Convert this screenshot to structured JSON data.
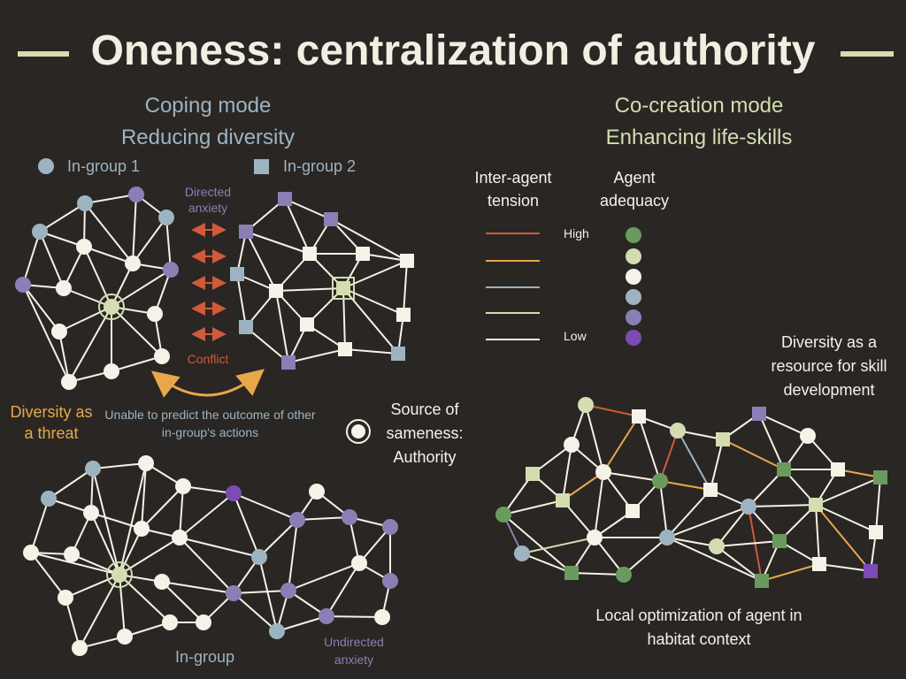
{
  "title": "Oneness: centralization of authority",
  "left": {
    "header_line1": "Coping mode",
    "header_line2": "Reducing diversity",
    "legend_group1": "In-group 1",
    "legend_group2": "In-group 2",
    "directed_anxiety": "Directed anxiety",
    "conflict": "Conflict",
    "diversity_threat": "Diversity as a threat",
    "unable_predict": "Unable to predict the outcome of other in-group's actions",
    "source_sameness": "Source of sameness: Authority",
    "in_group": "In-group",
    "undirected_anxiety": "Undirected anxiety"
  },
  "right": {
    "header_line1": "Co-creation mode",
    "header_line2": "Enhancing life-skills",
    "tension_label": "Inter-agent tension",
    "adequacy_label": "Agent adequacy",
    "high": "High",
    "low": "Low",
    "diversity_resource": "Diversity as a resource for skill development",
    "local_opt": "Local optimization of agent in habitat context"
  },
  "colors": {
    "background": "#2a2624",
    "blue": "#9db4c0",
    "green": "#d4ddb0",
    "white": "#f5f2e8",
    "orange": "#e8a84a",
    "red": "#cf5a3c",
    "purple": "#8a7fb5",
    "dark_green": "#6b9a5e",
    "dark_purple": "#7c4bb5"
  }
}
